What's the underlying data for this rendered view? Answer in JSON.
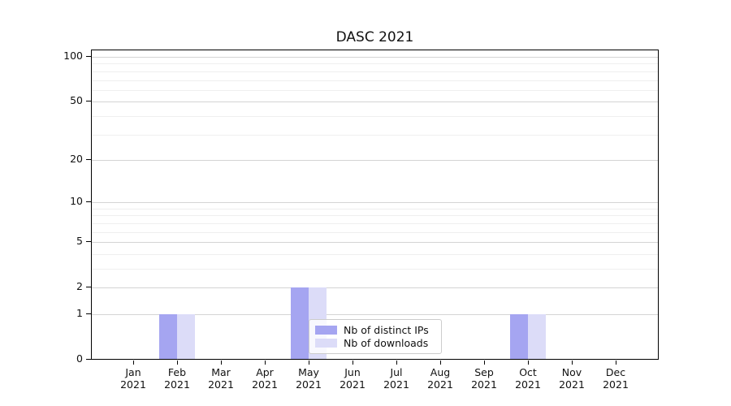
{
  "chart_data": {
    "type": "bar",
    "title": "DASC 2021",
    "categories": [
      {
        "month": "Jan",
        "year": "2021"
      },
      {
        "month": "Feb",
        "year": "2021"
      },
      {
        "month": "Mar",
        "year": "2021"
      },
      {
        "month": "Apr",
        "year": "2021"
      },
      {
        "month": "May",
        "year": "2021"
      },
      {
        "month": "Jun",
        "year": "2021"
      },
      {
        "month": "Jul",
        "year": "2021"
      },
      {
        "month": "Aug",
        "year": "2021"
      },
      {
        "month": "Sep",
        "year": "2021"
      },
      {
        "month": "Oct",
        "year": "2021"
      },
      {
        "month": "Nov",
        "year": "2021"
      },
      {
        "month": "Dec",
        "year": "2021"
      }
    ],
    "series": [
      {
        "name": "Nb of distinct IPs",
        "color": "#a5a5f1",
        "values": [
          0,
          1,
          0,
          0,
          2,
          0,
          0,
          0,
          0,
          1,
          0,
          0
        ]
      },
      {
        "name": "Nb of downloads",
        "color": "#dcdcf8",
        "values": [
          0,
          1,
          0,
          0,
          2,
          0,
          0,
          0,
          0,
          1,
          0,
          0
        ]
      }
    ],
    "xlabel": "",
    "ylabel": "",
    "yscale": "log1p",
    "ylim": [
      0,
      112
    ],
    "yticks": [
      0,
      1,
      2,
      5,
      10,
      20,
      50,
      100
    ],
    "yticks_minor": [
      3,
      4,
      6,
      7,
      8,
      9,
      30,
      40,
      60,
      70,
      80,
      90
    ],
    "grid": {
      "axis": "y",
      "major_color": "#d4d4d4",
      "minor_color": "#efefef"
    },
    "legend": {
      "position": "lower center",
      "border_color": "#cccccc"
    }
  }
}
